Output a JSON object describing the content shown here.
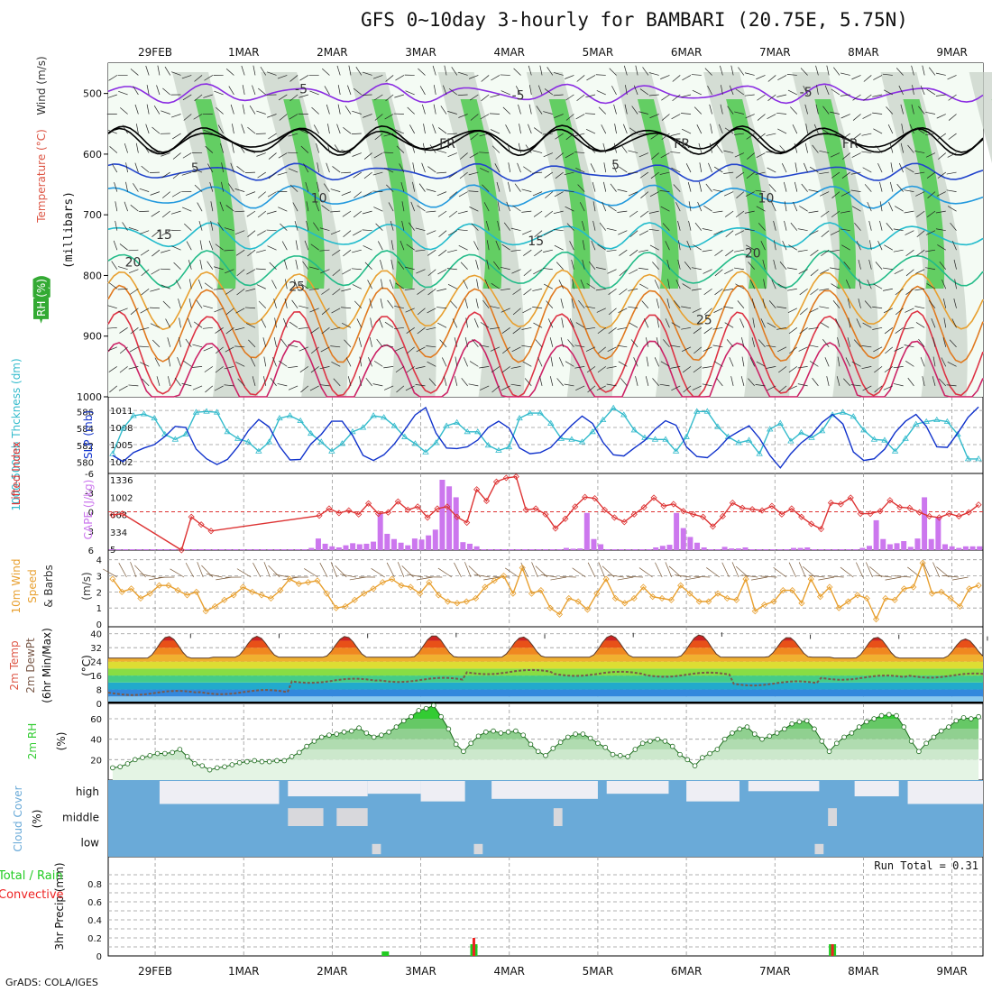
{
  "title": "GFS 0~10day 3-hourly for BAMBARI (20.75E, 5.75N)",
  "credit": "GrADS: COLA/IGES",
  "date_labels": [
    "29FEB",
    "1MAR",
    "2MAR",
    "3MAR",
    "4MAR",
    "5MAR",
    "6MAR",
    "7MAR",
    "8MAR",
    "9MAR"
  ],
  "colors": {
    "rh_green": "#3ec83e",
    "rh_light": "#e8f5e8",
    "rh_gray": "#c6d0c6",
    "thick": "#33bbcc",
    "slp": "#1133cc",
    "li": "#dd3333",
    "cape": "#cc77ee",
    "wind10": "#e8a030",
    "rh2m": "#33cc33",
    "cloud": "#6aaad8",
    "precip_total": "#22cc22",
    "precip_conv": "#ee2222"
  },
  "chart_data": [
    {
      "type": "heatmap",
      "panel": "upper-air",
      "ylabel": "(millibars)",
      "side_labels": [
        "RH (%)",
        "Temperature (°C)",
        "Wind (m/s)"
      ],
      "yticks": [
        500,
        600,
        700,
        800,
        900,
        1000
      ],
      "ylim": [
        1000,
        450
      ],
      "isotherm_labels": [
        {
          "text": "-5",
          "x": 1.65,
          "p": 500
        },
        {
          "text": "-5",
          "x": 4.1,
          "p": 510
        },
        {
          "text": "-5",
          "x": 7.35,
          "p": 505
        },
        {
          "text": "FR",
          "x": 3.3,
          "p": 590
        },
        {
          "text": "FR",
          "x": 5.95,
          "p": 590
        },
        {
          "text": "FR",
          "x": 7.85,
          "p": 590
        },
        {
          "text": "5",
          "x": 0.45,
          "p": 630
        },
        {
          "text": "5",
          "x": 5.2,
          "p": 625
        },
        {
          "text": "10",
          "x": 1.85,
          "p": 680
        },
        {
          "text": "10",
          "x": 6.9,
          "p": 680
        },
        {
          "text": "15",
          "x": 0.1,
          "p": 740
        },
        {
          "text": "15",
          "x": 4.3,
          "p": 750
        },
        {
          "text": "20",
          "x": -0.25,
          "p": 785
        },
        {
          "text": "20",
          "x": 6.75,
          "p": 770
        },
        {
          "text": "25",
          "x": 1.6,
          "p": 825
        },
        {
          "text": "25",
          "x": 6.2,
          "p": 880
        }
      ]
    },
    {
      "type": "line",
      "panel": "thickness-slp",
      "ylabel_left": "1000-500mb Thckness (dm)",
      "ylabel_right": "SLP (mb)",
      "left_ticks": [
        580,
        582,
        584,
        586
      ],
      "right_ticks": [
        "1002",
        "1005",
        "1008",
        "1011"
      ],
      "series": [
        {
          "name": "1000-500mb Thckness",
          "values": [
            581.0,
            584.0,
            585.5,
            585.7,
            585.2,
            583.3,
            582.7,
            583.3,
            585.9,
            586.0,
            585.9,
            583.6,
            582.8,
            582.4,
            581.3,
            582.4,
            585.2,
            585.5,
            584.9,
            583.4,
            582.4,
            581.3,
            582.2,
            583.6,
            584.1,
            585.5,
            585.3,
            584.3,
            583.0,
            582.2,
            581.2,
            582.3,
            584.3,
            584.7,
            583.6,
            583.6,
            582.0,
            581.4,
            581.8,
            585.2,
            585.8,
            585.8,
            584.6,
            582.8,
            582.7,
            582.4,
            583.6,
            585.0,
            586.4,
            585.6,
            583.8,
            582.9,
            582.7,
            582.7,
            581.3,
            583.0,
            586.0,
            586.0,
            584.2,
            583.0,
            582.3,
            582.6,
            581.0,
            583.9,
            584.6,
            582.5,
            583.5,
            582.9,
            583.7,
            585.6,
            585.9,
            585.4,
            583.8,
            582.7,
            582.6,
            581.3,
            582.8,
            584.5,
            584.8,
            585.0,
            584.8,
            583.3,
            580.4,
            580.4
          ]
        },
        {
          "name": "SLP",
          "values": [
            1003.1,
            1002.0,
            1003.6,
            1004.4,
            1005.0,
            1006.4,
            1008.2,
            1008.0,
            1004.2,
            1002.5,
            1001.5,
            1002.4,
            1004.6,
            1007.4,
            1009.4,
            1008.1,
            1004.7,
            1002.3,
            1002.4,
            1005.1,
            1006.8,
            1009.1,
            1009.1,
            1006.6,
            1003.1,
            1002.2,
            1003.2,
            1005.1,
            1007.6,
            1010.2,
            1011.5,
            1007.0,
            1004.4,
            1004.3,
            1004.6,
            1005.8,
            1008.0,
            1009.1,
            1007.9,
            1004.4,
            1003.4,
            1003.6,
            1004.5,
            1006.5,
            1008.4,
            1010.0,
            1008.7,
            1005.4,
            1003.2,
            1003.0,
            1004.4,
            1005.7,
            1007.7,
            1009.2,
            1008.4,
            1004.6,
            1002.9,
            1002.7,
            1004.2,
            1006.2,
            1007.3,
            1008.3,
            1006.1,
            1003.1,
            1000.9,
            1003.4,
            1005.3,
            1006.7,
            1008.9,
            1010.3,
            1008.6,
            1003.7,
            1002.2,
            1002.5,
            1004.2,
            1007.1,
            1009.1,
            1010.3,
            1008.2,
            1004.6,
            1004.5,
            1007.0,
            1009.8,
            1011.6
          ]
        }
      ]
    },
    {
      "type": "bar",
      "panel": "cape-li",
      "ylabel_left": "Lifted Index",
      "ylabel_right": "CAPE (J/kg)",
      "left_ticks": [
        "6",
        "3",
        "0",
        "-3",
        "-6"
      ],
      "right_ticks": [
        "5",
        "334",
        "668",
        "1002",
        "1336"
      ],
      "series": [
        {
          "name": "Lifted Index",
          "values": [
            0.5,
            0.3,
            null,
            null,
            null,
            null,
            null,
            6.0,
            0.8,
            2.0,
            3.0,
            null,
            null,
            null,
            null,
            null,
            null,
            null,
            null,
            null,
            null,
            0.6,
            -0.5,
            0.2,
            -0.2,
            0.4,
            -1.3,
            0.3,
            0.1,
            -1.6,
            -0.3,
            -0.8,
            0.9,
            -0.5,
            -0.8,
            0.8,
            1.7,
            -3.5,
            -1.7,
            -4.7,
            -5.3,
            -5.5,
            -0.3,
            -0.5,
            0.4,
            2.6,
            1.1,
            -0.8,
            -2.3,
            -2.1,
            -0.3,
            0.9,
            1.6,
            0.4,
            -0.7,
            -2.2,
            -0.9,
            -1.2,
            -0.1,
            0.4,
            0.8,
            2.3,
            0.7,
            -1.4,
            -0.6,
            -0.4,
            -0.2,
            -0.9,
            0.4,
            -0.5,
            0.8,
            1.9,
            2.7,
            -1.4,
            -1.2,
            -2.2,
            0.3,
            0.3,
            -0.1,
            -1.8,
            -0.7,
            -0.6,
            0.1,
            0.7,
            0.9,
            0.3,
            0.7,
            0.1,
            -1.1
          ]
        },
        {
          "name": "CAPE",
          "values": [
            5,
            5,
            5,
            5,
            5,
            5,
            5,
            5,
            5,
            5,
            5,
            5,
            5,
            5,
            5,
            5,
            5,
            5,
            5,
            5,
            5,
            5,
            5,
            5,
            5,
            5,
            5,
            5,
            5,
            30,
            210,
            110,
            60,
            40,
            80,
            120,
            100,
            110,
            150,
            700,
            300,
            200,
            130,
            80,
            210,
            190,
            270,
            380,
            1336,
            1210,
            1000,
            140,
            110,
            60,
            5,
            5,
            5,
            5,
            5,
            5,
            5,
            5,
            5,
            5,
            5,
            5,
            30,
            15,
            20,
            700,
            200,
            100,
            5,
            5,
            5,
            5,
            5,
            5,
            5,
            40,
            70,
            90,
            700,
            410,
            240,
            130,
            40,
            5,
            5,
            50,
            20,
            20,
            40,
            5,
            5,
            5,
            5,
            5,
            5,
            30,
            30,
            40,
            5,
            5,
            5,
            5,
            5,
            5,
            5,
            30,
            70,
            560,
            200,
            100,
            120,
            160,
            50,
            210,
            1000,
            200,
            620,
            100,
            60,
            30,
            60,
            60,
            60
          ]
        }
      ]
    },
    {
      "type": "line",
      "panel": "wind10m",
      "ylabel": "10m Wind Speed & Barbs (m/s)",
      "left_ticks": [
        "0",
        "1",
        "2",
        "3",
        "4"
      ],
      "series": [
        {
          "name": "10m Wind Speed",
          "values": [
            2.8,
            2.0,
            2.2,
            1.6,
            1.9,
            2.4,
            2.4,
            2.1,
            1.8,
            2.0,
            0.8,
            1.1,
            1.5,
            1.8,
            2.3,
            2.0,
            1.8,
            1.6,
            2.1,
            2.8,
            2.5,
            2.6,
            2.7,
            1.9,
            1.0,
            1.1,
            1.5,
            1.9,
            2.2,
            2.6,
            2.8,
            2.4,
            2.3,
            1.9,
            2.6,
            1.8,
            1.4,
            1.3,
            1.4,
            1.6,
            2.3,
            2.7,
            3.0,
            1.9,
            3.5,
            1.9,
            2.1,
            1.0,
            0.6,
            1.6,
            1.4,
            0.9,
            1.9,
            2.8,
            1.6,
            1.3,
            1.6,
            2.3,
            1.7,
            1.6,
            1.5,
            2.4,
            1.9,
            1.4,
            1.4,
            1.9,
            1.6,
            1.5,
            2.8,
            0.8,
            1.2,
            1.4,
            2.1,
            2.1,
            1.3,
            2.8,
            1.7,
            2.3,
            1.0,
            1.4,
            1.8,
            1.6,
            0.3,
            1.6,
            1.5,
            2.2,
            2.3,
            3.8,
            1.9,
            2.0,
            1.6,
            1.1,
            2.2,
            2.4
          ]
        }
      ]
    },
    {
      "type": "area",
      "panel": "temp2m",
      "ylabel": "2m Temp 2m DewPt (6hr Min/Max) (°C)",
      "left_ticks": [
        "0",
        "8",
        "16",
        "24",
        "32",
        "40"
      ],
      "ylim": [
        0,
        44
      ],
      "temp_max_days": [
        38.5,
        38.5,
        38.5,
        39.0,
        38.2,
        39.0,
        39.3,
        38.0,
        38.0,
        37.0
      ],
      "temp_min_days": [
        26.0,
        26.5,
        26.5,
        26.5,
        26.5,
        26.5,
        26.5,
        26.5,
        26.0,
        26.0
      ],
      "dewpoint_days": [
        6.0,
        6.5,
        13.0,
        13.5,
        18.0,
        17.0,
        16.5,
        11.5,
        14.8,
        16.0
      ]
    },
    {
      "type": "area",
      "panel": "rh2m",
      "ylabel": "2m RH (%)",
      "left_ticks": [
        "20",
        "40",
        "60"
      ],
      "ylim": [
        0,
        75
      ],
      "series": [
        {
          "name": "2m RH",
          "values": [
            12,
            13,
            16,
            20,
            22,
            24,
            26,
            26,
            27,
            30,
            23,
            16,
            14,
            10,
            12,
            13,
            15,
            17,
            18,
            19,
            18,
            18,
            19,
            19,
            23,
            27,
            33,
            38,
            42,
            44,
            45,
            47,
            48,
            51,
            46,
            42,
            44,
            47,
            52,
            58,
            62,
            68,
            70,
            73,
            62,
            50,
            35,
            28,
            36,
            43,
            47,
            48,
            46,
            47,
            48,
            44,
            35,
            28,
            24,
            31,
            37,
            42,
            45,
            45,
            41,
            36,
            32,
            25,
            24,
            23,
            30,
            36,
            38,
            40,
            38,
            33,
            25,
            20,
            14,
            22,
            26,
            30,
            40,
            46,
            50,
            52,
            45,
            40,
            43,
            46,
            50,
            55,
            57,
            58,
            50,
            38,
            28,
            36,
            42,
            46,
            52,
            57,
            60,
            63,
            64,
            63,
            52,
            38,
            28,
            36,
            42,
            48,
            52,
            58,
            61,
            60,
            62
          ]
        }
      ]
    },
    {
      "type": "bar",
      "panel": "cloud",
      "ylabel": "Cloud Cover (%)",
      "layer_labels": [
        "high",
        "middle",
        "low"
      ]
    },
    {
      "type": "bar",
      "panel": "precip",
      "ylabel_left": "Total / Rain",
      "ylabel_left2": "Convective",
      "ylabel": "3hr Precip (mm)",
      "left_ticks": [
        "0",
        "0.2",
        "0.4",
        "0.6",
        "0.8"
      ],
      "ylim": [
        0,
        1.0
      ],
      "run_total_label": "Run Total = 0.31",
      "bars": [
        {
          "t": 2.6,
          "total": 0.05,
          "conv": 0.0
        },
        {
          "t": 3.6,
          "total": 0.13,
          "conv": 0.2
        },
        {
          "t": 7.65,
          "total": 0.13,
          "conv": 0.13
        }
      ]
    }
  ]
}
